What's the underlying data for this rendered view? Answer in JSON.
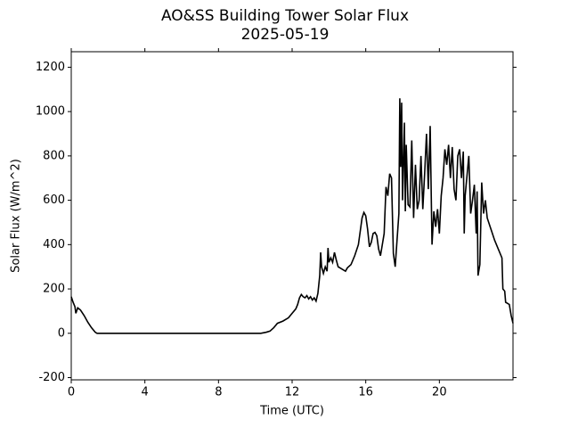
{
  "chart_data": {
    "type": "line",
    "title": "AO&SS Building Tower Solar Flux",
    "subtitle": "2025-05-19",
    "x_label": "Time (UTC)",
    "y_label": "Solar Flux (W/m^2)",
    "xlim": [
      0,
      24
    ],
    "xticks": [
      0,
      4,
      8,
      12,
      16,
      20
    ],
    "ylim": [
      -210,
      1270
    ],
    "yticks": [
      -200,
      0,
      200,
      400,
      600,
      800,
      1000,
      1200
    ],
    "grid": false,
    "series": [
      {
        "color": "#000000",
        "x": [
          0,
          0.1,
          0.2,
          0.25,
          0.35,
          0.5,
          0.7,
          0.9,
          1.1,
          1.3,
          1.4,
          10.3,
          10.6,
          10.8,
          11,
          11.2,
          11.5,
          11.8,
          12,
          12.2,
          12.3,
          12.4,
          12.5,
          12.6,
          12.7,
          12.8,
          12.9,
          13,
          13.1,
          13.2,
          13.3,
          13.4,
          13.5,
          13.55,
          13.6,
          13.7,
          13.8,
          13.9,
          13.95,
          14,
          14.1,
          14.2,
          14.3,
          14.4,
          14.5,
          14.7,
          14.9,
          15,
          15.2,
          15.4,
          15.6,
          15.8,
          15.9,
          16,
          16.1,
          16.2,
          16.3,
          16.4,
          16.5,
          16.6,
          16.7,
          16.8,
          16.9,
          17,
          17.1,
          17.2,
          17.3,
          17.4,
          17.5,
          17.6,
          17.7,
          17.8,
          17.85,
          17.9,
          17.95,
          18,
          18.1,
          18.15,
          18.2,
          18.3,
          18.4,
          18.5,
          18.6,
          18.7,
          18.8,
          18.9,
          19,
          19.1,
          19.2,
          19.3,
          19.4,
          19.5,
          19.6,
          19.7,
          19.8,
          19.9,
          20,
          20.1,
          20.2,
          20.3,
          20.4,
          20.5,
          20.6,
          20.7,
          20.8,
          20.9,
          21,
          21.1,
          21.2,
          21.3,
          21.35,
          21.4,
          21.6,
          21.7,
          21.8,
          21.9,
          22,
          22.05,
          22.1,
          22.2,
          22.3,
          22.4,
          22.5,
          22.6,
          22.8,
          23,
          23.2,
          23.4,
          23.45,
          23.55,
          23.6,
          23.8,
          23.9,
          24
        ],
        "values": [
          165,
          140,
          120,
          90,
          115,
          105,
          80,
          50,
          25,
          5,
          0,
          0,
          5,
          10,
          25,
          45,
          55,
          70,
          90,
          110,
          130,
          160,
          175,
          165,
          160,
          170,
          155,
          165,
          150,
          160,
          145,
          180,
          260,
          365,
          300,
          270,
          300,
          280,
          385,
          320,
          340,
          320,
          365,
          330,
          300,
          290,
          280,
          295,
          310,
          350,
          400,
          520,
          545,
          530,
          470,
          390,
          410,
          450,
          455,
          440,
          380,
          350,
          400,
          450,
          660,
          620,
          720,
          700,
          360,
          300,
          420,
          540,
          1060,
          750,
          1040,
          600,
          950,
          550,
          850,
          580,
          570,
          870,
          520,
          760,
          560,
          600,
          800,
          560,
          720,
          900,
          650,
          935,
          400,
          550,
          480,
          560,
          450,
          620,
          700,
          830,
          760,
          850,
          700,
          840,
          650,
          600,
          800,
          830,
          700,
          820,
          450,
          620,
          800,
          540,
          600,
          670,
          450,
          640,
          260,
          310,
          680,
          540,
          600,
          520,
          470,
          420,
          380,
          340,
          200,
          190,
          140,
          130,
          80,
          45
        ]
      }
    ]
  }
}
